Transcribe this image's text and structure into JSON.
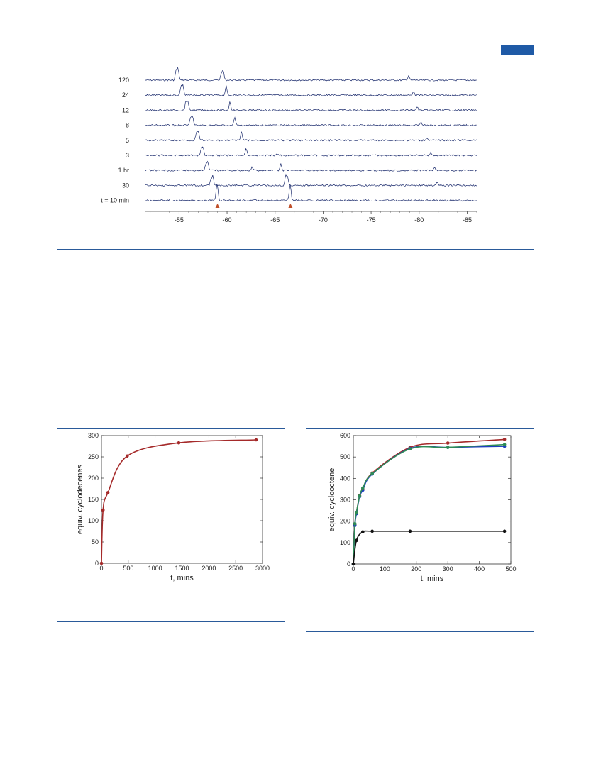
{
  "colors": {
    "rule": "#2a5a9a",
    "header_tab": "#1f5aa6",
    "nmr_trace": "#1a2a6c",
    "marker": "#c0502a",
    "red": "#a52a2a",
    "blue": "#1f3fbf",
    "green": "#2e8b57",
    "black": "#111111"
  },
  "nmr": {
    "trace_labels": [
      "120",
      "24",
      "12",
      "8",
      "5",
      "3",
      "1 hr",
      "30",
      "t = 10 min"
    ],
    "x_ticks": [
      "-55",
      "-60",
      "-65",
      "-70",
      "-75",
      "-80",
      "-85"
    ],
    "x_tick_values": [
      -55,
      -60,
      -65,
      -70,
      -75,
      -80,
      -85
    ],
    "x_range": [
      -51.5,
      -86
    ],
    "peaks": [
      [
        [
          -54.9,
          1.0
        ],
        [
          -54.7,
          0.9
        ],
        [
          -59.6,
          0.85
        ],
        [
          -59.4,
          0.6
        ],
        [
          -78.9,
          0.4
        ]
      ],
      [
        [
          -55.4,
          0.9
        ],
        [
          -55.2,
          0.75
        ],
        [
          -59.9,
          0.8
        ],
        [
          -79.4,
          0.35
        ]
      ],
      [
        [
          -55.9,
          0.85
        ],
        [
          -55.7,
          0.7
        ],
        [
          -60.3,
          0.75
        ],
        [
          -79.8,
          0.3
        ]
      ],
      [
        [
          -56.4,
          0.8
        ],
        [
          -56.2,
          0.7
        ],
        [
          -60.8,
          0.7
        ],
        [
          -80.2,
          0.3
        ]
      ],
      [
        [
          -57.0,
          0.8
        ],
        [
          -56.8,
          0.6
        ],
        [
          -61.5,
          0.7
        ],
        [
          -80.8,
          0.25
        ]
      ],
      [
        [
          -57.5,
          0.75
        ],
        [
          -57.3,
          0.55
        ],
        [
          -62.0,
          0.6
        ],
        [
          -65.2,
          0.15
        ],
        [
          -81.2,
          0.25
        ]
      ],
      [
        [
          -58.0,
          0.7
        ],
        [
          -57.8,
          0.55
        ],
        [
          -62.6,
          0.3
        ],
        [
          -65.6,
          0.55
        ],
        [
          -81.6,
          0.3
        ]
      ],
      [
        [
          -58.5,
          0.9
        ],
        [
          -58.3,
          0.4
        ],
        [
          -66.1,
          0.9
        ],
        [
          -66.3,
          0.7
        ],
        [
          -81.9,
          0.3
        ]
      ],
      [
        [
          -59.0,
          1.0
        ],
        [
          -58.9,
          0.7
        ],
        [
          -66.6,
          1.0
        ],
        [
          -66.5,
          0.6
        ]
      ]
    ],
    "marker_positions": [
      -59.0,
      -66.6
    ]
  },
  "chart_data": [
    {
      "type": "line",
      "xlabel": "t, mins",
      "ylabel": "equiv. cyclodecenes",
      "xlim": [
        0,
        3000
      ],
      "ylim": [
        0,
        300
      ],
      "x_ticks": [
        0,
        500,
        1000,
        1500,
        2000,
        2500,
        3000
      ],
      "y_ticks": [
        0,
        50,
        100,
        150,
        200,
        250,
        300
      ],
      "series": [
        {
          "color": "#a52a2a",
          "x": [
            0,
            30,
            120,
            480,
            1440,
            2880
          ],
          "y": [
            0,
            125,
            166,
            252,
            283,
            290
          ]
        }
      ]
    },
    {
      "type": "line",
      "xlabel": "t, mins",
      "ylabel": "equiv. cyclooctene",
      "xlim": [
        0,
        500
      ],
      "ylim": [
        0,
        600
      ],
      "x_ticks": [
        0,
        100,
        200,
        300,
        400,
        500
      ],
      "y_ticks": [
        0,
        100,
        200,
        300,
        400,
        500,
        600
      ],
      "series": [
        {
          "color": "#a52a2a",
          "x": [
            0,
            5,
            10,
            20,
            30,
            60,
            180,
            300,
            480
          ],
          "y": [
            0,
            185,
            240,
            320,
            350,
            425,
            545,
            565,
            582
          ]
        },
        {
          "color": "#1f3fbf",
          "x": [
            0,
            5,
            10,
            20,
            30,
            60,
            180,
            300,
            480
          ],
          "y": [
            0,
            180,
            235,
            315,
            345,
            420,
            540,
            545,
            550
          ]
        },
        {
          "color": "#2e8b57",
          "x": [
            0,
            5,
            10,
            20,
            30,
            60,
            180,
            300,
            480
          ],
          "y": [
            0,
            188,
            242,
            318,
            355,
            422,
            538,
            545,
            558
          ]
        },
        {
          "color": "#111111",
          "x": [
            0,
            10,
            30,
            60,
            180,
            480
          ],
          "y": [
            0,
            110,
            150,
            153,
            153,
            153
          ]
        }
      ]
    }
  ]
}
